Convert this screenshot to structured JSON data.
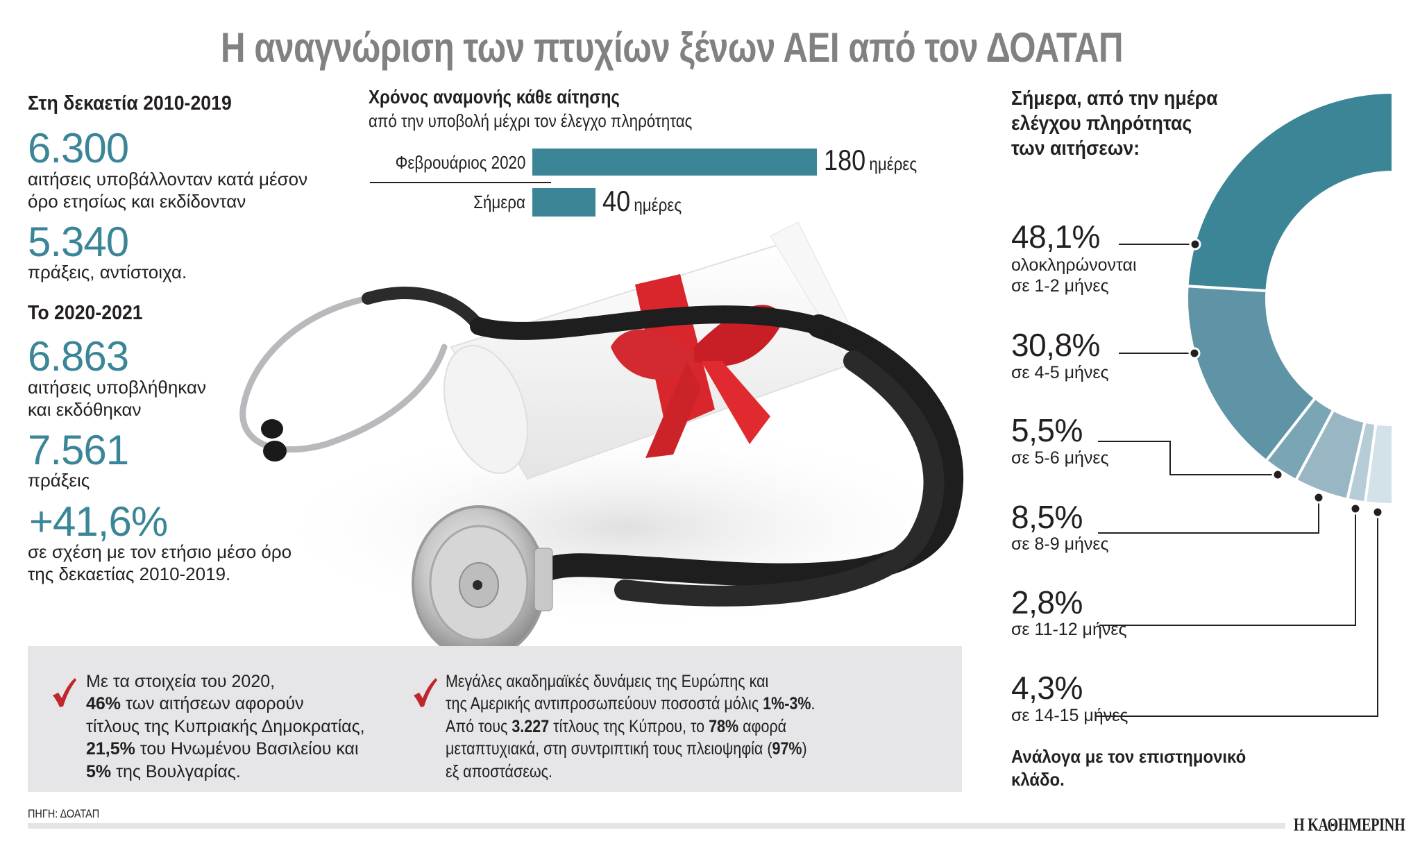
{
  "title": "Η αναγνώριση των πτυχίων ξένων ΑΕΙ από τον ΔΟΑΤΑΠ",
  "left_column": {
    "decade": {
      "heading": "Στη δεκαετία 2010-2019",
      "applications_value": "6.300",
      "applications_text_1": "αιτήσεις υποβάλλονταν κατά μέσον",
      "applications_text_2": "όρο ετησίως και εκδίδονταν",
      "acts_value": "5.340",
      "acts_text": "πράξεις, αντίστοιχα."
    },
    "recent": {
      "heading": "Το 2020-2021",
      "applications_value": "6.863",
      "applications_text_1": "αιτήσεις υποβλήθηκαν",
      "applications_text_2": "και εκδόθηκαν",
      "acts_value": "7.561",
      "acts_text": "πράξεις",
      "change_value": "+41,6%",
      "change_text_1": "σε σχέση με τον ετήσιο μέσο όρο",
      "change_text_2": "της δεκαετίας 2010-2019."
    }
  },
  "bar_chart": {
    "heading": "Χρόνος αναμονής κάθε αίτησης",
    "subheading": "από την υποβολή μέχρι τον έλεγχο πληρότητας",
    "unit": "ημέρες",
    "bars": [
      {
        "label": "Φεβρουάριος 2020",
        "value": "180"
      },
      {
        "label": "Σήμερα",
        "value": "40"
      }
    ]
  },
  "donut": {
    "heading_1": "Σήμερα, από την ημέρα",
    "heading_2": "ελέγχου πληρότητας",
    "heading_3": "των αιτήσεων:",
    "segments": [
      {
        "pct": "48,1%",
        "line1": "ολοκληρώνονται",
        "line2": "σε 1-2 μήνες",
        "color": "#3b8596"
      },
      {
        "pct": "30,8%",
        "line1": "σε 4-5 μήνες",
        "color": "#5e94a6"
      },
      {
        "pct": "5,5%",
        "line1": "σε 5-6 μήνες",
        "color": "#79a5b4"
      },
      {
        "pct": "8,5%",
        "line1": "σε 8-9 μήνες",
        "color": "#98b6c3"
      },
      {
        "pct": "2,8%",
        "line1": "σε 11-12 μήνες",
        "color": "#b6ccd7"
      },
      {
        "pct": "4,3%",
        "line1": "σε 14-15 μήνες",
        "color": "#d3e1e8"
      }
    ],
    "note_1": "Ανάλογα με τον επιστημονικό",
    "note_2": "κλάδο."
  },
  "callouts": {
    "left": {
      "line1": "Με τα στοιχεία του 2020,",
      "line2_bold": "46%",
      "line2": " των αιτήσεων αφορούν",
      "line3": "τίτλους της Κυπριακής Δημοκρατίας,",
      "line4_bold": "21,5%",
      "line4": " του Ηνωμένου Βασιλείου και",
      "line5_bold": "5%",
      "line5": " της Βουλγαρίας."
    },
    "right": {
      "line1": "Μεγάλες ακαδημαϊκές δυνάμεις της Ευρώπης και",
      "line2": "της Αμερικής αντιπροσωπεύουν ποσοστά μόλις ",
      "line2_bold": "1%-3%",
      "line2_end": ".",
      "line3_a": "Από τους ",
      "line3_bold1": "3.227",
      "line3_b": " τίτλους της Κύπρου, το ",
      "line3_bold2": "78%",
      "line3_c": " αφορά",
      "line4_a": "μεταπτυχιακά, στη συντριπτική τους πλειοψηφία (",
      "line4_bold": "97%",
      "line4_b": ")",
      "line5": "εξ αποστάσεως."
    }
  },
  "footer": {
    "source": "ΠΗΓΗ: ΔΟΑΤΑΠ",
    "logo": "Η ΚΑΘΗΜΕΡΙΝΗ"
  },
  "colors": {
    "accent_teal": "#3a8597",
    "title_gray": "#818184",
    "check_red": "#c0272d",
    "callout_bg": "#e6e6e8"
  },
  "chart_data": [
    {
      "type": "bar",
      "title": "Χρόνος αναμονής κάθε αίτησης",
      "subtitle": "από την υποβολή μέχρι τον έλεγχο πληρότητας",
      "orientation": "horizontal",
      "categories": [
        "Φεβρουάριος 2020",
        "Σήμερα"
      ],
      "values": [
        180,
        40
      ],
      "unit": "ημέρες",
      "xlabel": "",
      "ylabel": "",
      "grid": false
    },
    {
      "type": "pie",
      "variant": "half-donut",
      "title": "Σήμερα, από την ημέρα ελέγχου πληρότητας των αιτήσεων:",
      "categories": [
        "σε 1-2 μήνες",
        "σε 4-5 μήνες",
        "σε 5-6 μήνες",
        "σε 8-9 μήνες",
        "σε 11-12 μήνες",
        "σε 14-15 μήνες"
      ],
      "values": [
        48.1,
        30.8,
        5.5,
        8.5,
        2.8,
        4.3
      ],
      "unit": "%",
      "annotation": "Ανάλογα με τον επιστημονικό κλάδο."
    }
  ]
}
